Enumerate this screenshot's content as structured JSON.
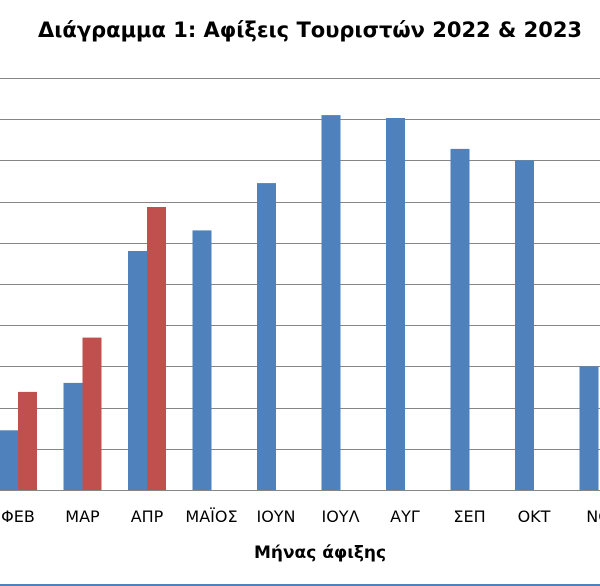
{
  "chart_data": {
    "type": "bar",
    "title": "Διάγραμμα 1: Αφίξεις Τουριστών 2022 & 2023",
    "xlabel": "Μήνας άφιξης",
    "ylabel": "",
    "categories": [
      "ΦΕΒ",
      "ΜΑΡ",
      "ΑΠΡ",
      "ΜΑΪΟΣ",
      "ΙΟΥΝ",
      "ΙΟΥΛ",
      "ΑΥΓ",
      "ΣΕΠ",
      "ΟΚΤ",
      "ΝΟ"
    ],
    "series": [
      {
        "color": "#4f81bd",
        "values": [
          1.45,
          2.6,
          5.8,
          6.3,
          7.45,
          9.1,
          9.03,
          8.28,
          8.0,
          3.0
        ]
      },
      {
        "color": "#c0504d",
        "values": [
          2.38,
          3.7,
          6.87,
          null,
          null,
          null,
          null,
          null,
          null,
          null
        ]
      }
    ],
    "ylim": [
      0,
      10
    ],
    "grid": true
  }
}
